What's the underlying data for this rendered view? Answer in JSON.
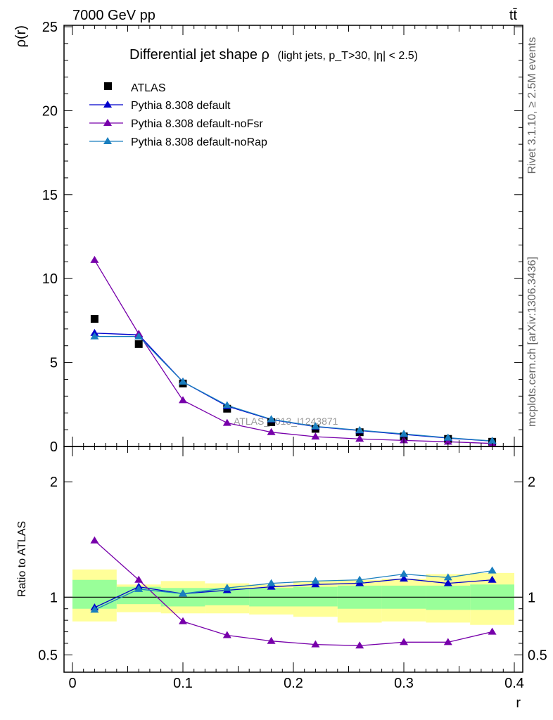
{
  "header": {
    "energy_label": "7000 GeV pp",
    "process_label": "tt̄"
  },
  "side_labels": {
    "rivet": "Rivet 3.1.10, ≥ 2.5M events",
    "mcplots": "mcplots.cern.ch [arXiv:1306.3436]"
  },
  "chart_data": {
    "type": "line",
    "title_main": "Differential jet shape ρ",
    "title_sub": "(light jets, p_T>30, |η| < 2.5)",
    "watermark": "ATLAS_2013_I1243871",
    "xlabel": "r",
    "ylabel_top": "ρ(r)",
    "ylabel_bottom": "Ratio to ATLAS",
    "xlim": [
      0,
      0.4
    ],
    "ylim_top": [
      0,
      25
    ],
    "ylim_bottom": [
      0.35,
      2.3
    ],
    "x_ticks": [
      "0",
      "0.1",
      "0.2",
      "0.3",
      "0.4"
    ],
    "y_ticks_top": [
      "0",
      "5",
      "10",
      "15",
      "20",
      "25"
    ],
    "y_ticks_bottom": [
      "0.5",
      "1",
      "2"
    ],
    "x": [
      0.02,
      0.06,
      0.1,
      0.14,
      0.18,
      0.22,
      0.26,
      0.3,
      0.34,
      0.38
    ],
    "bin_edges": [
      0,
      0.04,
      0.08,
      0.12,
      0.16,
      0.2,
      0.24,
      0.28,
      0.32,
      0.36,
      0.4
    ],
    "data": {
      "name": "ATLAS",
      "color": "#000000",
      "values": [
        7.6,
        6.1,
        3.75,
        2.25,
        1.45,
        1.05,
        0.85,
        0.6,
        0.45,
        0.28
      ]
    },
    "series": [
      {
        "name": "Pythia 8.308 default",
        "color": "#0000cc",
        "values": [
          6.75,
          6.65,
          3.85,
          2.4,
          1.6,
          1.18,
          0.95,
          0.72,
          0.5,
          0.32
        ],
        "ratio": [
          0.91,
          1.09,
          1.03,
          1.06,
          1.09,
          1.11,
          1.12,
          1.16,
          1.12,
          1.15
        ]
      },
      {
        "name": "Pythia 8.308 default-noFsr",
        "color": "#7700aa",
        "values": [
          11.1,
          6.7,
          2.75,
          1.4,
          0.85,
          0.58,
          0.45,
          0.36,
          0.28,
          0.18
        ],
        "ratio": [
          1.49,
          1.15,
          0.79,
          0.67,
          0.62,
          0.59,
          0.58,
          0.61,
          0.61,
          0.7
        ]
      },
      {
        "name": "Pythia 8.308 default-noRap",
        "color": "#1a7fbf",
        "values": [
          6.55,
          6.55,
          3.85,
          2.45,
          1.62,
          1.2,
          0.97,
          0.75,
          0.52,
          0.33
        ],
        "ratio": [
          0.89,
          1.07,
          1.03,
          1.08,
          1.12,
          1.14,
          1.15,
          1.2,
          1.17,
          1.23
        ]
      }
    ],
    "uncertainty_bands": {
      "inner_color": "#99ff99",
      "outer_color": "#ffff99",
      "inner": [
        [
          0.9,
          1.15
        ],
        [
          0.94,
          1.09
        ],
        [
          0.92,
          1.08
        ],
        [
          0.93,
          1.08
        ],
        [
          0.92,
          1.08
        ],
        [
          0.92,
          1.09
        ],
        [
          0.9,
          1.1
        ],
        [
          0.9,
          1.1
        ],
        [
          0.89,
          1.1
        ],
        [
          0.89,
          1.11
        ]
      ],
      "outer": [
        [
          0.79,
          1.24
        ],
        [
          0.87,
          1.11
        ],
        [
          0.86,
          1.14
        ],
        [
          0.86,
          1.12
        ],
        [
          0.85,
          1.11
        ],
        [
          0.83,
          1.14
        ],
        [
          0.78,
          1.15
        ],
        [
          0.79,
          1.16
        ],
        [
          0.78,
          1.2
        ],
        [
          0.76,
          1.21
        ]
      ]
    }
  }
}
